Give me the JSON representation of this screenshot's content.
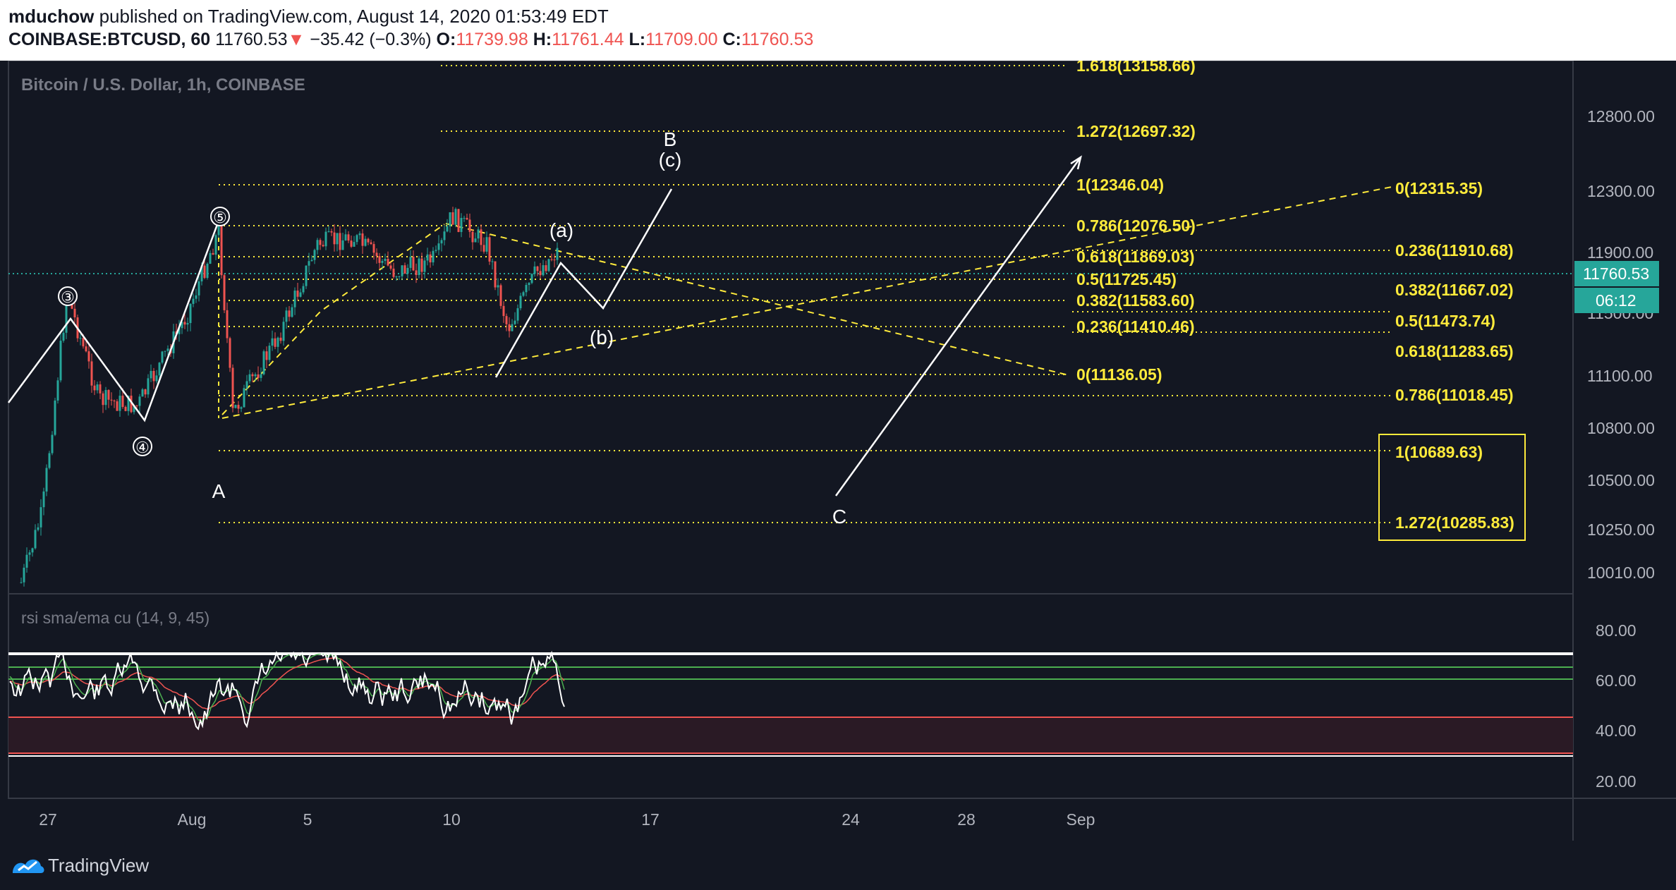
{
  "header": {
    "author": "mduchow",
    "published_text": "published on TradingView.com, August 14, 2020 01:53:49 EDT",
    "symbol": "COINBASE:BTCUSD, 60",
    "last": "11760.53",
    "change_arrow": "▼",
    "change": "−35.42 (−0.3%)",
    "open_label": "O:",
    "open": "11739.98",
    "high_label": "H:",
    "high": "11761.44",
    "low_label": "L:",
    "low": "11709.00",
    "close_label": "C:",
    "close": "11760.53"
  },
  "footer": {
    "brand": "TradingView"
  },
  "colors": {
    "background": "#131722",
    "fib": "#ffeb3b",
    "wave": "#ffffff",
    "rsi": "#ffffff",
    "rsi_sma": "#4caf50",
    "rsi_ema": "#ef5350",
    "price_tag": "#26a69a"
  },
  "chart_data": {
    "type": "candlestick",
    "title": "Bitcoin / U.S. Dollar, 1h, COINBASE",
    "price_axis": {
      "ticks": [
        "12800.00",
        "12300.00",
        "11900.00",
        "11500.00",
        "11100.00",
        "10800.00",
        "10500.00",
        "10250.00",
        "10010.00"
      ],
      "current_price": "11760.53",
      "countdown": "06:12"
    },
    "time_axis": {
      "ticks": [
        "27",
        "Aug",
        "5",
        "10",
        "17",
        "24",
        "28",
        "Sep"
      ]
    },
    "fib_left": [
      {
        "label": "1.618(13158.66)"
      },
      {
        "label": "1.272(12697.32)"
      },
      {
        "label": "1(12346.04)"
      },
      {
        "label": "0.786(12076.50)"
      },
      {
        "label": "0.618(11869.03)"
      },
      {
        "label": "0.5(11725.45)"
      },
      {
        "label": "0.382(11583.60)"
      },
      {
        "label": "0.236(11410.46)"
      },
      {
        "label": "0(11136.05)"
      }
    ],
    "fib_right": [
      {
        "label": "0(12315.35)"
      },
      {
        "label": "0.236(11910.68)"
      },
      {
        "label": "0.382(11667.02)"
      },
      {
        "label": "0.5(11473.74)"
      },
      {
        "label": "0.618(11283.65)"
      },
      {
        "label": "0.786(11018.45)"
      },
      {
        "label": "1(10689.63)"
      },
      {
        "label": "1.272(10285.83)"
      }
    ],
    "wave_labels": [
      "③",
      "④",
      "⑤",
      "A",
      "(a)",
      "(b)",
      "(c)",
      "B",
      "C"
    ],
    "rsi": {
      "title": "rsi sma/ema cu (14, 9, 45)",
      "ticks": [
        "80.00",
        "60.00",
        "40.00",
        "20.00"
      ],
      "levels": [
        70,
        65,
        60,
        45,
        30
      ]
    }
  }
}
